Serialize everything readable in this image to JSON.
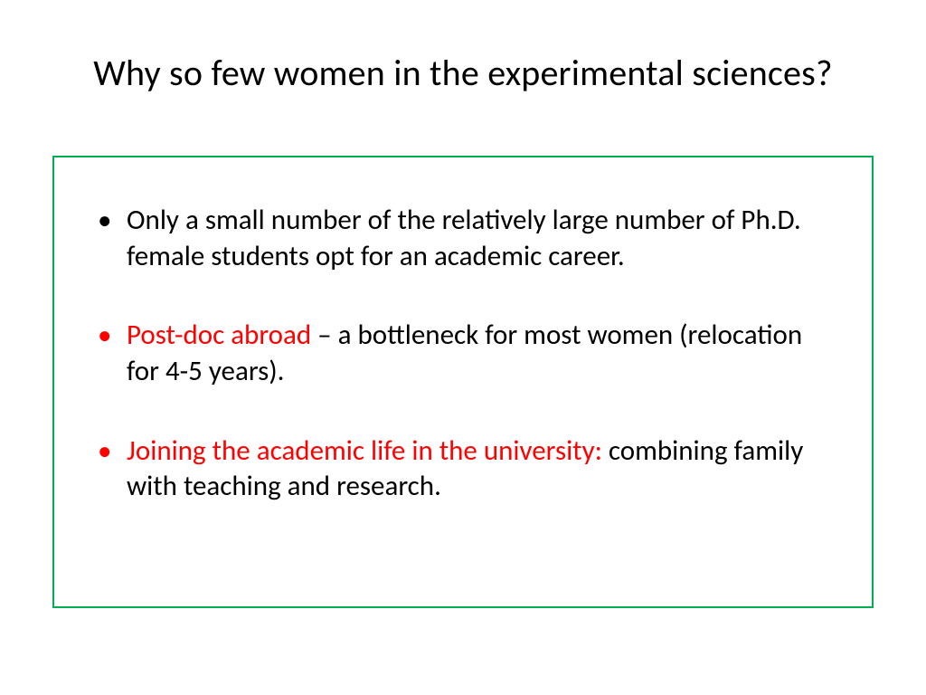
{
  "slide": {
    "title": "Why so few women in the experimental sciences?",
    "box_border_color": "#00b050",
    "bullets": [
      {
        "marker_color": "#000000",
        "segments": [
          {
            "text": "Only a small number of the relatively large number of Ph.D. female students opt for an academic career.",
            "color": "#000000"
          }
        ]
      },
      {
        "marker_color": "#ff0000",
        "segments": [
          {
            "text": "Post-doc abroad ",
            "color": "#ff0000"
          },
          {
            "text": "– a bottleneck for most women (relocation for 4-5 years).",
            "color": "#000000"
          }
        ]
      },
      {
        "marker_color": "#ff0000",
        "segments": [
          {
            "text": "Joining the academic life in the university: ",
            "color": "#ff0000"
          },
          {
            "text": "combining family with teaching and research.",
            "color": "#000000"
          }
        ]
      }
    ],
    "title_fontsize": 40,
    "body_fontsize": 31,
    "background_color": "#ffffff",
    "text_color": "#000000",
    "highlight_color": "#ff0000"
  }
}
